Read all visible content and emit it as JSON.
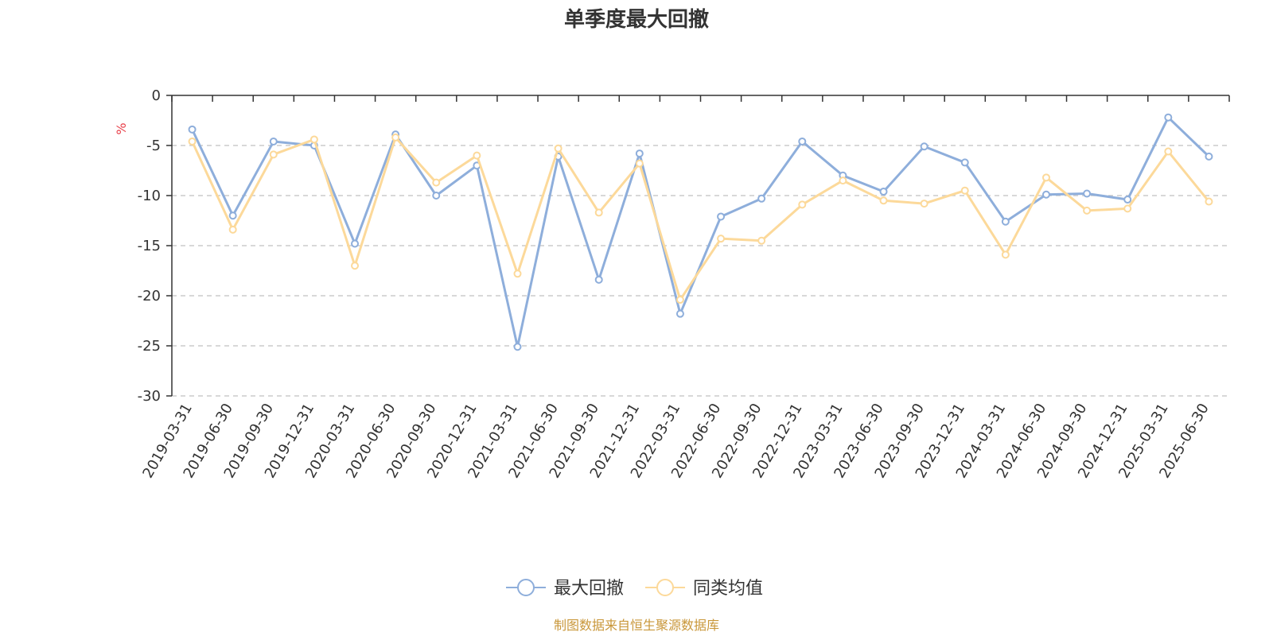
{
  "chart_data": {
    "type": "line",
    "title": "单季度最大回撤",
    "ylabel": "%",
    "ylim": [
      -30,
      0
    ],
    "yticks": [
      0,
      -5,
      -10,
      -15,
      -20,
      -25,
      -30
    ],
    "grid": true,
    "legend_position": "bottom",
    "categories": [
      "2019-03-31",
      "2019-06-30",
      "2019-09-30",
      "2019-12-31",
      "2020-03-31",
      "2020-06-30",
      "2020-09-30",
      "2020-12-31",
      "2021-03-31",
      "2021-06-30",
      "2021-09-30",
      "2021-12-31",
      "2022-03-31",
      "2022-06-30",
      "2022-09-30",
      "2022-12-31",
      "2023-03-31",
      "2023-06-30",
      "2023-09-30",
      "2023-12-31",
      "2024-03-31",
      "2024-06-30",
      "2024-09-30",
      "2024-12-31",
      "2025-03-31",
      "2025-06-30"
    ],
    "series": [
      {
        "name": "最大回撤",
        "color": "#8eaedb",
        "values": [
          -3.4,
          -12.0,
          -4.6,
          -5.0,
          -14.8,
          -3.9,
          -10.0,
          -7.0,
          -25.1,
          -6.1,
          -18.4,
          -5.8,
          -21.8,
          -12.1,
          -10.3,
          -4.6,
          -8.0,
          -9.6,
          -5.1,
          -6.7,
          -12.6,
          -9.9,
          -9.8,
          -10.4,
          -2.2,
          -6.1
        ]
      },
      {
        "name": "同类均值",
        "color": "#fcd99a",
        "values": [
          -4.6,
          -13.4,
          -5.9,
          -4.4,
          -17.0,
          -4.2,
          -8.7,
          -6.0,
          -17.8,
          -5.3,
          -11.7,
          -6.8,
          -20.4,
          -14.3,
          -14.5,
          -10.9,
          -8.5,
          -10.5,
          -10.8,
          -9.5,
          -15.9,
          -8.2,
          -11.5,
          -11.3,
          -5.6,
          -10.6
        ]
      }
    ]
  },
  "footer": {
    "source": "制图数据来自恒生聚源数据库"
  }
}
